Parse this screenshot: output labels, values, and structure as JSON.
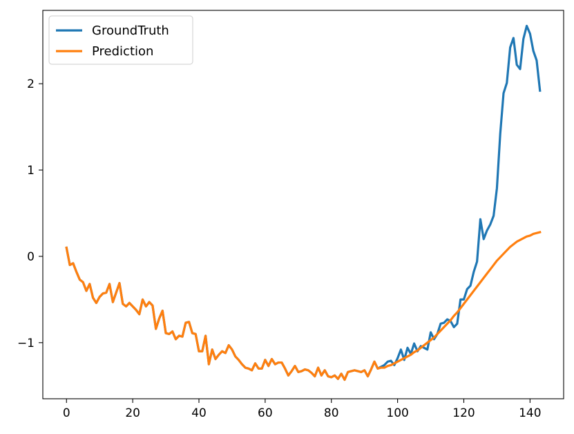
{
  "chart_data": {
    "type": "line",
    "title": "",
    "xlabel": "",
    "ylabel": "",
    "xlim": [
      -7.15,
      150.15
    ],
    "ylim": [
      -1.65,
      2.85
    ],
    "xticks": [
      0,
      20,
      40,
      60,
      80,
      100,
      120,
      140
    ],
    "yticks": [
      -1,
      0,
      1,
      2
    ],
    "ytick_labels": [
      "−1",
      "0",
      "1",
      "2"
    ],
    "grid": false,
    "legend_position": "top-left",
    "series": [
      {
        "name": "GroundTruth",
        "color": "#1f77b4",
        "x": [
          0,
          1,
          2,
          3,
          4,
          5,
          6,
          7,
          8,
          9,
          10,
          11,
          12,
          13,
          14,
          15,
          16,
          17,
          18,
          19,
          20,
          21,
          22,
          23,
          24,
          25,
          26,
          27,
          28,
          29,
          30,
          31,
          32,
          33,
          34,
          35,
          36,
          37,
          38,
          39,
          40,
          41,
          42,
          43,
          44,
          45,
          46,
          47,
          48,
          49,
          50,
          51,
          52,
          53,
          54,
          55,
          56,
          57,
          58,
          59,
          60,
          61,
          62,
          63,
          64,
          65,
          66,
          67,
          68,
          69,
          70,
          71,
          72,
          73,
          74,
          75,
          76,
          77,
          78,
          79,
          80,
          81,
          82,
          83,
          84,
          85,
          86,
          87,
          88,
          89,
          90,
          91,
          92,
          93,
          94,
          95,
          96,
          97,
          98,
          99,
          100,
          101,
          102,
          103,
          104,
          105,
          106,
          107,
          108,
          109,
          110,
          111,
          112,
          113,
          114,
          115,
          116,
          117,
          118,
          119,
          120,
          121,
          122,
          123,
          124,
          125,
          126,
          127,
          128,
          129,
          130,
          131,
          132,
          133,
          134,
          135,
          136,
          137,
          138,
          139,
          140,
          141,
          142,
          143
        ],
        "y": [
          0.1,
          -0.1,
          -0.08,
          -0.18,
          -0.27,
          -0.3,
          -0.4,
          -0.32,
          -0.48,
          -0.54,
          -0.47,
          -0.43,
          -0.42,
          -0.32,
          -0.53,
          -0.42,
          -0.31,
          -0.55,
          -0.58,
          -0.54,
          -0.58,
          -0.62,
          -0.67,
          -0.5,
          -0.58,
          -0.53,
          -0.57,
          -0.84,
          -0.72,
          -0.63,
          -0.89,
          -0.9,
          -0.87,
          -0.96,
          -0.92,
          -0.93,
          -0.77,
          -0.76,
          -0.89,
          -0.9,
          -1.1,
          -1.1,
          -0.92,
          -1.25,
          -1.08,
          -1.19,
          -1.14,
          -1.1,
          -1.12,
          -1.03,
          -1.08,
          -1.16,
          -1.2,
          -1.25,
          -1.29,
          -1.3,
          -1.32,
          -1.24,
          -1.3,
          -1.3,
          -1.2,
          -1.27,
          -1.19,
          -1.25,
          -1.23,
          -1.23,
          -1.3,
          -1.38,
          -1.33,
          -1.27,
          -1.34,
          -1.33,
          -1.31,
          -1.32,
          -1.35,
          -1.39,
          -1.29,
          -1.38,
          -1.32,
          -1.39,
          -1.4,
          -1.38,
          -1.42,
          -1.36,
          -1.43,
          -1.34,
          -1.33,
          -1.32,
          -1.33,
          -1.34,
          -1.32,
          -1.39,
          -1.31,
          -1.22,
          -1.3,
          -1.28,
          -1.26,
          -1.22,
          -1.21,
          -1.26,
          -1.18,
          -1.08,
          -1.2,
          -1.06,
          -1.13,
          -1.01,
          -1.1,
          -1.04,
          -1.06,
          -1.08,
          -0.88,
          -0.96,
          -0.9,
          -0.78,
          -0.77,
          -0.73,
          -0.75,
          -0.82,
          -0.78,
          -0.5,
          -0.5,
          -0.38,
          -0.34,
          -0.18,
          -0.06,
          0.43,
          0.2,
          0.3,
          0.37,
          0.47,
          0.79,
          1.42,
          1.89,
          2.01,
          2.42,
          2.53,
          2.22,
          2.17,
          2.52,
          2.67,
          2.58,
          2.38,
          2.27,
          1.92
        ]
      },
      {
        "name": "Prediction",
        "color": "#ff7f0e",
        "x": [
          0,
          1,
          2,
          3,
          4,
          5,
          6,
          7,
          8,
          9,
          10,
          11,
          12,
          13,
          14,
          15,
          16,
          17,
          18,
          19,
          20,
          21,
          22,
          23,
          24,
          25,
          26,
          27,
          28,
          29,
          30,
          31,
          32,
          33,
          34,
          35,
          36,
          37,
          38,
          39,
          40,
          41,
          42,
          43,
          44,
          45,
          46,
          47,
          48,
          49,
          50,
          51,
          52,
          53,
          54,
          55,
          56,
          57,
          58,
          59,
          60,
          61,
          62,
          63,
          64,
          65,
          66,
          67,
          68,
          69,
          70,
          71,
          72,
          73,
          74,
          75,
          76,
          77,
          78,
          79,
          80,
          81,
          82,
          83,
          84,
          85,
          86,
          87,
          88,
          89,
          90,
          91,
          92,
          93,
          94,
          95,
          96,
          97,
          98,
          99,
          100,
          101,
          102,
          103,
          104,
          105,
          106,
          107,
          108,
          109,
          110,
          111,
          112,
          113,
          114,
          115,
          116,
          117,
          118,
          119,
          120,
          121,
          122,
          123,
          124,
          125,
          126,
          127,
          128,
          129,
          130,
          131,
          132,
          133,
          134,
          135,
          136,
          137,
          138,
          139,
          140,
          141,
          142,
          143
        ],
        "y": [
          0.1,
          -0.1,
          -0.08,
          -0.18,
          -0.27,
          -0.3,
          -0.4,
          -0.32,
          -0.48,
          -0.54,
          -0.47,
          -0.43,
          -0.42,
          -0.32,
          -0.53,
          -0.42,
          -0.31,
          -0.55,
          -0.58,
          -0.54,
          -0.58,
          -0.62,
          -0.67,
          -0.5,
          -0.58,
          -0.53,
          -0.57,
          -0.84,
          -0.72,
          -0.63,
          -0.89,
          -0.9,
          -0.87,
          -0.96,
          -0.92,
          -0.93,
          -0.77,
          -0.76,
          -0.89,
          -0.9,
          -1.1,
          -1.1,
          -0.92,
          -1.25,
          -1.08,
          -1.19,
          -1.14,
          -1.1,
          -1.12,
          -1.03,
          -1.08,
          -1.16,
          -1.2,
          -1.25,
          -1.29,
          -1.3,
          -1.32,
          -1.24,
          -1.3,
          -1.3,
          -1.2,
          -1.27,
          -1.19,
          -1.25,
          -1.23,
          -1.23,
          -1.3,
          -1.38,
          -1.33,
          -1.27,
          -1.34,
          -1.33,
          -1.31,
          -1.32,
          -1.35,
          -1.39,
          -1.29,
          -1.38,
          -1.32,
          -1.39,
          -1.4,
          -1.38,
          -1.42,
          -1.36,
          -1.43,
          -1.34,
          -1.33,
          -1.32,
          -1.33,
          -1.34,
          -1.32,
          -1.39,
          -1.31,
          -1.22,
          -1.3,
          -1.29,
          -1.29,
          -1.27,
          -1.26,
          -1.24,
          -1.22,
          -1.2,
          -1.18,
          -1.16,
          -1.14,
          -1.11,
          -1.09,
          -1.06,
          -1.03,
          -1.0,
          -0.97,
          -0.94,
          -0.9,
          -0.86,
          -0.82,
          -0.78,
          -0.74,
          -0.69,
          -0.65,
          -0.6,
          -0.55,
          -0.5,
          -0.45,
          -0.4,
          -0.35,
          -0.3,
          -0.25,
          -0.2,
          -0.15,
          -0.1,
          -0.05,
          -0.01,
          0.03,
          0.07,
          0.11,
          0.14,
          0.17,
          0.19,
          0.21,
          0.23,
          0.24,
          0.26,
          0.27,
          0.28
        ]
      }
    ]
  }
}
